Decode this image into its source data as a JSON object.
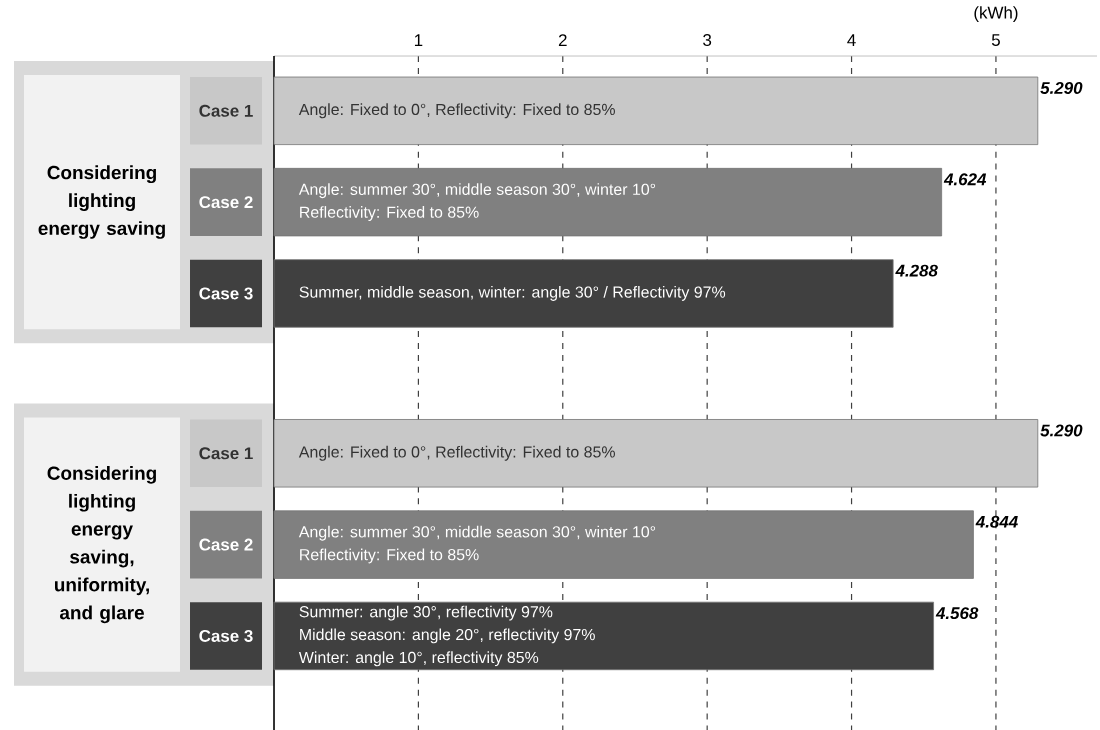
{
  "chart_data": {
    "type": "bar",
    "orientation": "horizontal",
    "categories": [
      "Case 1",
      "Case 2",
      "Case 3",
      "Case 1",
      "Case 2",
      "Case 3"
    ],
    "values": [
      5.29,
      4.624,
      4.288,
      5.29,
      4.844,
      4.568
    ],
    "value_labels": [
      "5.290",
      "4.624",
      "4.288",
      "5.290",
      "4.844",
      "4.568"
    ],
    "colors": [
      "#c8c8c8",
      "#808080",
      "#404040",
      "#c8c8c8",
      "#808080",
      "#404040"
    ],
    "xlim": [
      0,
      5.7
    ],
    "xticks": [
      1,
      2,
      3,
      4,
      5
    ],
    "xlabel": "(kWh)",
    "grid": "x",
    "annotations": [
      "Considering lighting energy saving",
      "Considering lighting energy saving, uniformity, and glare",
      "Angle: Fixed to 0°, Reflectivity: Fixed to 85%",
      "Angle: summer 30°, middle season 30°, winter 10°",
      "Reflectivity: Fixed to 85%",
      "Summer, middle season, winter: angle 30° / Reflectivity 97%",
      "Angle: Fixed to 0°, Reflectivity: Fixed to 85%",
      "Angle: summer 30°, middle season 30°, winter 10°",
      "Reflectivity: Fixed to 85%",
      "Summer: angle 30°, reflectivity 97%",
      "Middle season: angle 20°, reflectivity 97%",
      "Winter: angle 10°, reflectivity 85%"
    ]
  }
}
